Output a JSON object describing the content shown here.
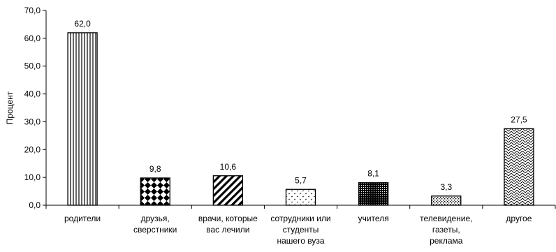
{
  "chart_data": {
    "type": "bar",
    "title": "",
    "xlabel": "",
    "ylabel": "Процент",
    "ylim": [
      0,
      70
    ],
    "yticks": [
      "0,0",
      "10,0",
      "20,0",
      "30,0",
      "40,0",
      "50,0",
      "60,0",
      "70,0"
    ],
    "grid": false,
    "legend": "none",
    "categories": [
      [
        "родители"
      ],
      [
        "друзья,",
        "сверстники"
      ],
      [
        "врачи, которые",
        "вас лечили"
      ],
      [
        "сотрудники или",
        "студенты",
        "нашего вуза"
      ],
      [
        "учителя"
      ],
      [
        "телевидение,",
        "газеты,",
        "реклама"
      ],
      [
        "другое"
      ]
    ],
    "values": [
      62.0,
      9.8,
      10.6,
      5.7,
      8.1,
      3.3,
      27.5
    ],
    "value_labels": [
      "62,0",
      "9,8",
      "10,6",
      "5,7",
      "8,1",
      "3,3",
      "27,5"
    ],
    "patterns": [
      "vertical-lines",
      "diamond-checker",
      "diagonal-stripes",
      "sparse-dashes",
      "dense-dots",
      "fine-dots",
      "weave"
    ],
    "colors": {
      "ink": "#000000",
      "background": "#ffffff"
    }
  }
}
